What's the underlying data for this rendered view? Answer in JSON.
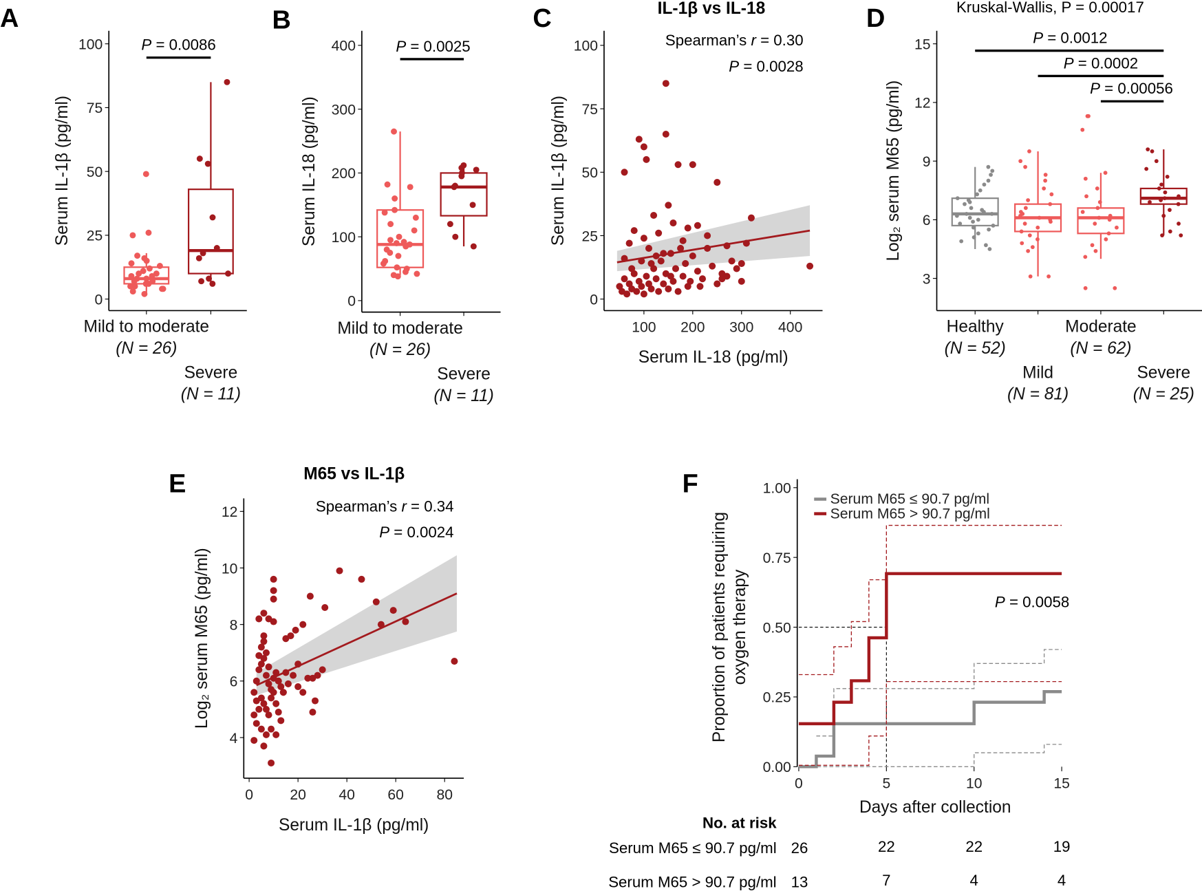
{
  "panels": {
    "A": "A",
    "B": "B",
    "C": "C",
    "D": "D",
    "E": "E",
    "F": "F"
  },
  "colors": {
    "light_red": "#ee5a5a",
    "dark_red": "#a31a1e",
    "grey": "#8a8a8a",
    "ci": "#d6d6d6"
  },
  "chart_data": [
    {
      "id": "A",
      "type": "box",
      "ylabel": "Serum IL-1β (pg/ml)",
      "ylim": [
        0,
        100
      ],
      "yticks": [
        0,
        25,
        50,
        75,
        100
      ],
      "categories": [
        {
          "label": "Mild to moderate",
          "n": "(N = 26)"
        },
        {
          "label": "Severe",
          "n": "(N = 11)"
        }
      ],
      "boxes": [
        {
          "q1": 6,
          "median": 8,
          "q3": 12.5,
          "low": 2,
          "high": 18,
          "color": "light_red"
        },
        {
          "q1": 10,
          "median": 19,
          "q3": 43,
          "low": 6,
          "high": 85,
          "color": "dark_red"
        }
      ],
      "points": [
        [
          49,
          26,
          25,
          17,
          16,
          15,
          14,
          13,
          12,
          11,
          10,
          10,
          9,
          9,
          8,
          8,
          7,
          7,
          6,
          6,
          5,
          5,
          4,
          4,
          3,
          2
        ],
        [
          85,
          55,
          53,
          32,
          20,
          18,
          16,
          10,
          8,
          7,
          6
        ]
      ],
      "significance": [
        {
          "from": 0,
          "to": 1,
          "label": "P = 0.0086"
        }
      ]
    },
    {
      "id": "B",
      "type": "box",
      "ylabel": "Serum IL-18 (pg/ml)",
      "ylim": [
        0,
        400
      ],
      "yticks": [
        0,
        100,
        200,
        300,
        400
      ],
      "categories": [
        {
          "label": "Mild to moderate",
          "n": "(N = 26)"
        },
        {
          "label": "Severe",
          "n": "(N = 11)"
        }
      ],
      "boxes": [
        {
          "q1": 52,
          "median": 88,
          "q3": 142,
          "low": 40,
          "high": 265,
          "color": "light_red"
        },
        {
          "q1": 133,
          "median": 178,
          "q3": 200,
          "low": 85,
          "high": 212,
          "color": "dark_red"
        }
      ],
      "points": [
        [
          265,
          182,
          178,
          160,
          142,
          138,
          130,
          120,
          110,
          100,
          95,
          92,
          90,
          88,
          85,
          80,
          75,
          70,
          62,
          58,
          52,
          50,
          45,
          42,
          40,
          38
        ],
        [
          212,
          208,
          205,
          200,
          195,
          180,
          178,
          150,
          120,
          100,
          85
        ]
      ],
      "significance": [
        {
          "from": 0,
          "to": 1,
          "label": "P = 0.0025"
        }
      ]
    },
    {
      "id": "C",
      "type": "scatter",
      "title": "IL-1β vs IL-18",
      "xlabel": "Serum IL-18 (pg/ml)",
      "ylabel": "Serum IL-1β (pg/ml)",
      "xticks": [
        100,
        200,
        300,
        400
      ],
      "yticks": [
        0,
        25,
        50,
        75,
        100
      ],
      "annotations": [
        "Spearman’s r = 0.30",
        "P = 0.0028"
      ],
      "fit": {
        "x": [
          45,
          440
        ],
        "y": [
          14.5,
          27
        ],
        "ci_low": [
          11,
          17
        ],
        "ci_high": [
          19,
          37
        ]
      },
      "points": [
        [
          50,
          5
        ],
        [
          55,
          3
        ],
        [
          60,
          8
        ],
        [
          65,
          2
        ],
        [
          70,
          6
        ],
        [
          75,
          4
        ],
        [
          80,
          10
        ],
        [
          85,
          3
        ],
        [
          90,
          7
        ],
        [
          95,
          5
        ],
        [
          100,
          2
        ],
        [
          105,
          9
        ],
        [
          110,
          6
        ],
        [
          115,
          4
        ],
        [
          120,
          12
        ],
        [
          125,
          8
        ],
        [
          130,
          3
        ],
        [
          135,
          15
        ],
        [
          140,
          6
        ],
        [
          145,
          10
        ],
        [
          150,
          4
        ],
        [
          155,
          18
        ],
        [
          160,
          7
        ],
        [
          165,
          12
        ],
        [
          170,
          3
        ],
        [
          175,
          20
        ],
        [
          180,
          9
        ],
        [
          185,
          14
        ],
        [
          190,
          5
        ],
        [
          200,
          17
        ],
        [
          210,
          11
        ],
        [
          220,
          8
        ],
        [
          230,
          20
        ],
        [
          240,
          13
        ],
        [
          250,
          6
        ],
        [
          260,
          10
        ],
        [
          270,
          9
        ],
        [
          280,
          15
        ],
        [
          290,
          12
        ],
        [
          300,
          14
        ],
        [
          310,
          22
        ],
        [
          320,
          32
        ],
        [
          440,
          13
        ],
        [
          60,
          50
        ],
        [
          90,
          63
        ],
        [
          100,
          60
        ],
        [
          105,
          55
        ],
        [
          145,
          85
        ],
        [
          145,
          65
        ],
        [
          170,
          53
        ],
        [
          200,
          53
        ],
        [
          250,
          46
        ],
        [
          150,
          37
        ],
        [
          120,
          33
        ],
        [
          160,
          30
        ],
        [
          190,
          28
        ],
        [
          210,
          29
        ],
        [
          80,
          27
        ],
        [
          100,
          24
        ],
        [
          130,
          26
        ],
        [
          70,
          22
        ],
        [
          110,
          20
        ],
        [
          140,
          18
        ],
        [
          60,
          16
        ],
        [
          95,
          15
        ],
        [
          125,
          17
        ],
        [
          180,
          23
        ],
        [
          230,
          25
        ],
        [
          270,
          21
        ],
        [
          300,
          7
        ],
        [
          260,
          8
        ],
        [
          215,
          5
        ],
        [
          75,
          12
        ],
        [
          115,
          14
        ],
        [
          155,
          9
        ],
        [
          195,
          7
        ]
      ]
    },
    {
      "id": "D",
      "type": "box",
      "title": "Kruskal-Wallis, P = 0.00017",
      "ylabel": "Log₂ serum M65 (pg/ml)",
      "ylim": [
        3,
        15
      ],
      "yticks": [
        3,
        6,
        9,
        12,
        15
      ],
      "categories": [
        {
          "label": "Healthy",
          "n": "(N = 52)"
        },
        {
          "label": "Mild",
          "n": "(N = 81)"
        },
        {
          "label": "Moderate",
          "n": "(N = 62)"
        },
        {
          "label": "Severe",
          "n": "(N = 25)"
        }
      ],
      "boxes": [
        {
          "q1": 5.7,
          "median": 6.3,
          "q3": 7.1,
          "low": 4.5,
          "high": 8.7,
          "color": "grey"
        },
        {
          "q1": 5.4,
          "median": 6.1,
          "q3": 6.8,
          "low": 3.1,
          "high": 9.5,
          "color": "light_red"
        },
        {
          "q1": 5.3,
          "median": 6.1,
          "q3": 6.6,
          "low": 4.0,
          "high": 8.4,
          "color": "light_red"
        },
        {
          "q1": 6.8,
          "median": 7.1,
          "q3": 7.6,
          "low": 5.2,
          "high": 9.6,
          "color": "dark_red"
        }
      ],
      "points": [
        [
          8.7,
          8.5,
          8.3,
          8.0,
          7.8,
          7.5,
          7.3,
          7.1,
          7.0,
          6.9,
          6.8,
          6.6,
          6.5,
          6.4,
          6.3,
          6.3,
          6.2,
          6.1,
          6.0,
          5.9,
          5.8,
          5.7,
          5.6,
          5.5,
          5.3,
          5.1,
          4.9,
          4.7,
          4.5
        ],
        [
          9.5,
          9.0,
          8.7,
          8.3,
          8.0,
          7.6,
          7.3,
          7.0,
          6.8,
          6.6,
          6.4,
          6.3,
          6.2,
          6.1,
          6.0,
          5.9,
          5.8,
          5.6,
          5.4,
          5.2,
          5.0,
          4.8,
          4.6,
          4.4,
          3.1,
          3.1
        ],
        [
          11.3,
          11.3,
          10.6,
          8.4,
          8.1,
          7.6,
          7.2,
          6.9,
          6.6,
          6.4,
          6.2,
          6.1,
          6.0,
          5.8,
          5.6,
          5.3,
          5.0,
          4.7,
          4.4,
          4.1,
          2.5,
          2.5
        ],
        [
          9.6,
          9.5,
          9.0,
          8.6,
          8.2,
          7.8,
          7.6,
          7.4,
          7.2,
          7.1,
          7.0,
          6.9,
          6.8,
          6.5,
          6.2,
          5.8,
          5.4,
          5.2,
          5.2
        ]
      ],
      "significance": [
        {
          "from": 0,
          "to": 3,
          "label": "P = 0.0012"
        },
        {
          "from": 1,
          "to": 3,
          "label": "P = 0.0002"
        },
        {
          "from": 2,
          "to": 3,
          "label": "P = 0.00056"
        }
      ]
    },
    {
      "id": "E",
      "type": "scatter",
      "title": "M65 vs IL-1β",
      "xlabel": "Serum IL-1β (pg/ml)",
      "ylabel": "Log₂ serum M65 (pg/ml)",
      "xticks": [
        0,
        20,
        40,
        60,
        80
      ],
      "yticks": [
        4,
        6,
        8,
        10,
        12
      ],
      "annotations": [
        "Spearman’s r = 0.34",
        "P = 0.0024"
      ],
      "fit": {
        "x": [
          3,
          85
        ],
        "y": [
          5.85,
          9.1
        ],
        "ci_low": [
          5.5,
          7.75
        ],
        "ci_high": [
          6.3,
          10.45
        ]
      },
      "points": [
        [
          10,
          9.6
        ],
        [
          10,
          9.2
        ],
        [
          10,
          8.9
        ],
        [
          6,
          8.4
        ],
        [
          4,
          8.2
        ],
        [
          8,
          8.2
        ],
        [
          10,
          8.1
        ],
        [
          6,
          7.6
        ],
        [
          6,
          7.4
        ],
        [
          15,
          7.5
        ],
        [
          17,
          7.6
        ],
        [
          19,
          7.8
        ],
        [
          22,
          8.0
        ],
        [
          25,
          9.0
        ],
        [
          31,
          8.6
        ],
        [
          37,
          9.9
        ],
        [
          46,
          9.6
        ],
        [
          52,
          8.8
        ],
        [
          54,
          8.0
        ],
        [
          59,
          8.5
        ],
        [
          64,
          8.1
        ],
        [
          84,
          6.7
        ],
        [
          3,
          6.0
        ],
        [
          4,
          6.4
        ],
        [
          5,
          6.6
        ],
        [
          6,
          6.8
        ],
        [
          7,
          6.2
        ],
        [
          8,
          5.9
        ],
        [
          9,
          5.7
        ],
        [
          10,
          6.1
        ],
        [
          11,
          6.3
        ],
        [
          12,
          6.0
        ],
        [
          13,
          5.8
        ],
        [
          14,
          5.6
        ],
        [
          15,
          6.3
        ],
        [
          16,
          5.9
        ],
        [
          18,
          6.2
        ],
        [
          20,
          6.6
        ],
        [
          24,
          6.1
        ],
        [
          26,
          6.1
        ],
        [
          28,
          6.2
        ],
        [
          30,
          6.4
        ],
        [
          2,
          5.6
        ],
        [
          3,
          5.3
        ],
        [
          4,
          5.0
        ],
        [
          5,
          5.4
        ],
        [
          6,
          5.2
        ],
        [
          7,
          5.0
        ],
        [
          8,
          4.8
        ],
        [
          9,
          5.4
        ],
        [
          10,
          5.6
        ],
        [
          11,
          5.2
        ],
        [
          12,
          4.9
        ],
        [
          13,
          4.6
        ],
        [
          14,
          5.6
        ],
        [
          2,
          4.8
        ],
        [
          3,
          4.5
        ],
        [
          5,
          4.3
        ],
        [
          7,
          4.1
        ],
        [
          9,
          4.3
        ],
        [
          11,
          4.1
        ],
        [
          6,
          3.7
        ],
        [
          2,
          3.9
        ],
        [
          9,
          3.1
        ],
        [
          26,
          4.9
        ],
        [
          27,
          5.3
        ],
        [
          20,
          5.8
        ],
        [
          22,
          5.6
        ],
        [
          4,
          6.9
        ],
        [
          5,
          7.2
        ],
        [
          7,
          7.0
        ],
        [
          8,
          6.5
        ]
      ]
    },
    {
      "id": "F",
      "type": "line",
      "subtype": "kaplan-meier",
      "xlabel": "Days after collection",
      "ylabel": [
        "Proportion of patients requiring",
        "oxygen therapy"
      ],
      "xticks": [
        0,
        5,
        10,
        15
      ],
      "yticks": [
        "0.00",
        "0.25",
        "0.50",
        "0.75",
        "1.00"
      ],
      "annotation": "P = 0.0058",
      "series": [
        {
          "name": "Serum M65 ≤ 90.7 pg/ml",
          "color": "grey",
          "steps": [
            [
              0,
              0
            ],
            [
              1,
              0.038
            ],
            [
              2,
              0.154
            ],
            [
              10,
              0.231
            ],
            [
              14,
              0.269
            ],
            [
              15,
              0.269
            ]
          ],
          "ci_upper": [
            [
              1,
              0.11
            ],
            [
              2,
              0.28
            ],
            [
              10,
              0.37
            ],
            [
              14,
              0.42
            ],
            [
              15,
              0.42
            ]
          ],
          "ci_lower": [
            [
              0,
              0
            ],
            [
              10,
              0.05
            ],
            [
              14,
              0.08
            ],
            [
              15,
              0.08
            ]
          ]
        },
        {
          "name": "Serum M65 > 90.7 pg/ml",
          "color": "dark_red",
          "steps": [
            [
              0,
              0.154
            ],
            [
              2,
              0.231
            ],
            [
              3,
              0.308
            ],
            [
              4,
              0.462
            ],
            [
              5,
              0.692
            ],
            [
              15,
              0.692
            ]
          ],
          "ci_upper": [
            [
              0,
              0.33
            ],
            [
              2,
              0.43
            ],
            [
              3,
              0.52
            ],
            [
              4,
              0.67
            ],
            [
              5,
              0.865
            ],
            [
              15,
              0.865
            ]
          ],
          "ci_lower": [
            [
              0,
              0.005
            ],
            [
              4,
              0.11
            ],
            [
              5,
              0.305
            ],
            [
              15,
              0.305
            ]
          ]
        }
      ],
      "median_line": {
        "y": 0.5,
        "x": 5
      },
      "risk_table": {
        "title": "No. at risk",
        "rows": [
          {
            "label": "Serum M65 ≤ 90.7 pg/ml",
            "values": [
              26,
              22,
              22,
              19
            ]
          },
          {
            "label": "Serum M65 > 90.7 pg/ml",
            "values": [
              13,
              7,
              4,
              4
            ]
          }
        ]
      }
    }
  ]
}
